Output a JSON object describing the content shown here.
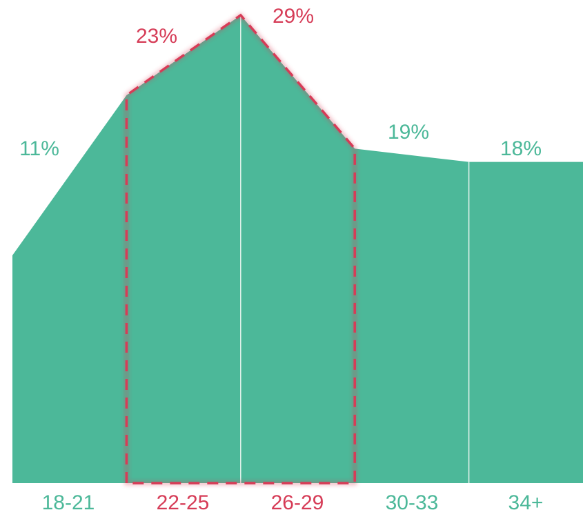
{
  "chart_data": {
    "type": "area",
    "categories": [
      "18-21",
      "22-25",
      "26-29",
      "30-33",
      "34+"
    ],
    "values": [
      11,
      23,
      29,
      19,
      18
    ],
    "value_labels": [
      "11%",
      "23%",
      "29%",
      "19%",
      "18%"
    ],
    "highlighted_categories": [
      "22-25",
      "26-29"
    ],
    "grid": false,
    "legend": "none",
    "colors": {
      "area": "#4cb899",
      "base_label": "#4cb899",
      "highlight": "#d63c57",
      "divider": "#e8f5ef",
      "background": "#ffffff"
    }
  }
}
